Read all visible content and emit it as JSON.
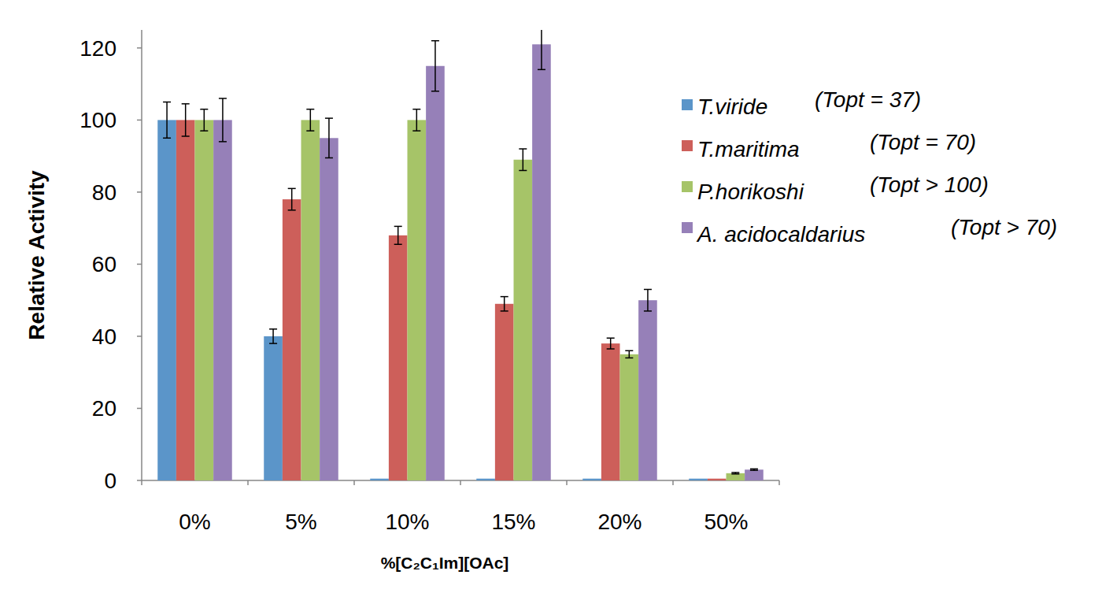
{
  "chart_data": {
    "type": "bar",
    "y_label": "Relative Activity",
    "x_label": "%[C₂C₁Im][OAc]",
    "categories": [
      "0%",
      "5%",
      "10%",
      "15%",
      "20%",
      "50%"
    ],
    "series": [
      {
        "name": "T.viride",
        "color": "#5b95c9",
        "values": [
          100,
          40,
          0.5,
          0.5,
          0.5,
          0.5
        ],
        "errors": [
          5,
          2,
          0,
          0,
          0,
          0
        ]
      },
      {
        "name": "T.maritima",
        "color": "#cd5f5a",
        "values": [
          100,
          78,
          68,
          49,
          38,
          0.5
        ],
        "errors": [
          4.5,
          3,
          2.5,
          2,
          1.5,
          0
        ]
      },
      {
        "name": "P.horikoshi",
        "color": "#a6c468",
        "values": [
          100,
          100,
          100,
          89,
          35,
          2
        ],
        "errors": [
          3,
          3,
          3,
          3,
          1,
          0.2
        ]
      },
      {
        "name": "A. acidocaldarius",
        "color": "#9680b8",
        "values": [
          100,
          95,
          115,
          121,
          50,
          3
        ],
        "errors": [
          6,
          5.5,
          7,
          7,
          3,
          0.2
        ]
      }
    ],
    "annotations": [
      "(Topt = 37)",
      "(Topt = 70)",
      "(Topt > 100)",
      "(Topt > 70)"
    ],
    "ylim": [
      0,
      125
    ],
    "yticks": [
      0,
      20,
      40,
      60,
      80,
      100,
      120
    ],
    "grid": false,
    "legend": "right"
  }
}
